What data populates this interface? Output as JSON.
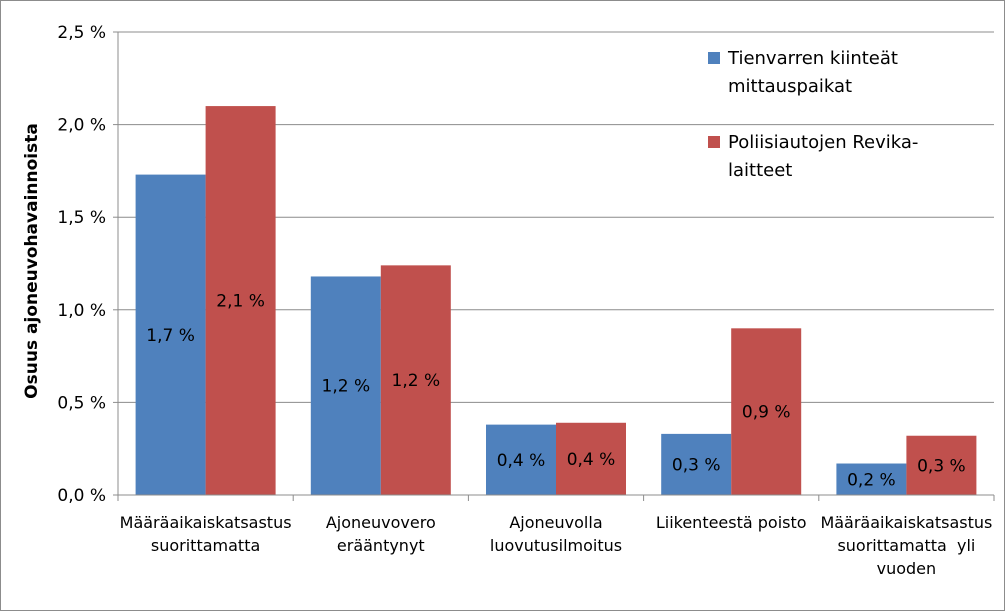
{
  "chart_data": {
    "type": "bar",
    "ylabel": "Osuus ajoneuvohavainnoista",
    "ylim": [
      0,
      2.5
    ],
    "yticks": [
      "0,0 %",
      "0,5 %",
      "1,0 %",
      "1,5 %",
      "2,0 %",
      "2,5 %"
    ],
    "grid": true,
    "legend_position": "top-right",
    "categories": [
      [
        "Määräaikaiskatsastus",
        "suorittamatta"
      ],
      [
        "Ajoneuvovero",
        "erääntynyt"
      ],
      [
        "Ajoneuvolla",
        "luovutusilmoitus"
      ],
      [
        "Liikenteestä poisto"
      ],
      [
        "Määräaikaiskatsastus",
        "suorittamatta  yli",
        "vuoden"
      ]
    ],
    "series": [
      {
        "name": [
          "Tienvarren kiinteät",
          "mittauspaikat"
        ],
        "color": "#4f81bd",
        "values": [
          1.73,
          1.18,
          0.38,
          0.33,
          0.17
        ],
        "labels": [
          "1,7 %",
          "1,2 %",
          "0,4 %",
          "0,3 %",
          "0,2 %"
        ]
      },
      {
        "name": [
          "Poliisiautojen Revika-",
          "laitteet"
        ],
        "color": "#c0504d",
        "values": [
          2.1,
          1.24,
          0.39,
          0.9,
          0.32
        ],
        "labels": [
          "2,1 %",
          "1,2 %",
          "0,4 %",
          "0,9 %",
          "0,3 %"
        ]
      }
    ]
  }
}
